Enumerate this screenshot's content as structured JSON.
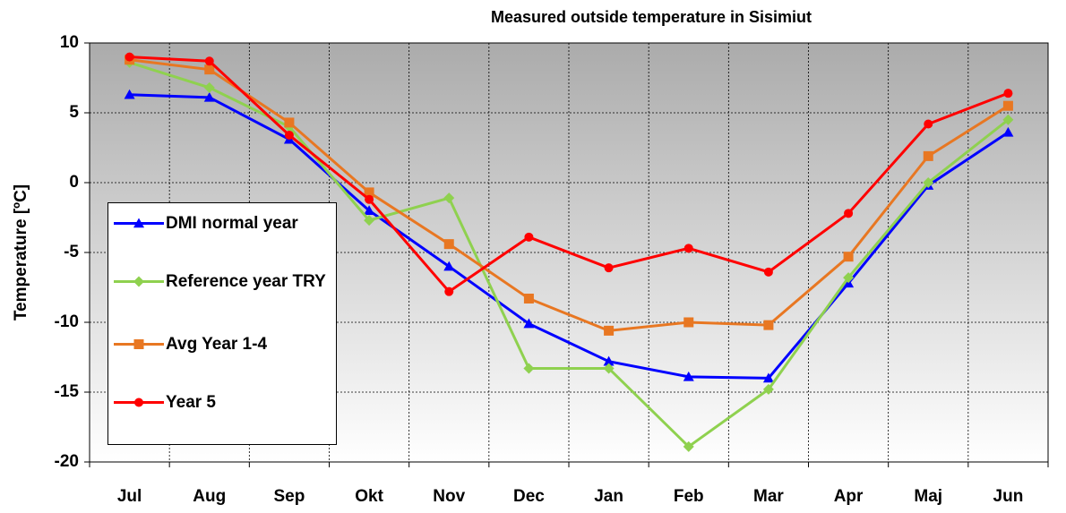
{
  "chart_data": {
    "type": "line",
    "title": "Measured outside temperature in Sisimiut",
    "ylabel": "Temperature [ºC]",
    "categories": [
      "Jul",
      "Aug",
      "Sep",
      "Okt",
      "Nov",
      "Dec",
      "Jan",
      "Feb",
      "Mar",
      "Apr",
      "Maj",
      "Jun"
    ],
    "series": [
      {
        "name": "DMI normal year",
        "color": "#0000ff",
        "marker": "triangle",
        "values": [
          6.3,
          6.1,
          3.1,
          -2.0,
          -6.0,
          -10.1,
          -12.8,
          -13.9,
          -14.0,
          -7.2,
          -0.2,
          3.6
        ]
      },
      {
        "name": "Reference year TRY",
        "color": "#8fd14f",
        "marker": "diamond",
        "values": [
          8.6,
          6.8,
          4.0,
          -2.7,
          -1.1,
          -13.3,
          -13.3,
          -18.9,
          -14.8,
          -6.8,
          0.0,
          4.5
        ]
      },
      {
        "name": "Avg Year 1-4",
        "color": "#e87722",
        "marker": "square",
        "values": [
          8.8,
          8.1,
          4.3,
          -0.7,
          -4.4,
          -8.3,
          -10.6,
          -10.0,
          -10.2,
          -5.3,
          1.9,
          5.5
        ]
      },
      {
        "name": "Year 5",
        "color": "#ff0000",
        "marker": "circle",
        "values": [
          9.0,
          8.7,
          3.4,
          -1.2,
          -7.8,
          -3.9,
          -6.1,
          -4.7,
          -6.4,
          -2.2,
          4.2,
          6.4
        ]
      }
    ],
    "ylim": [
      -20,
      10
    ],
    "yticks": [
      -20,
      -15,
      -10,
      -5,
      0,
      5,
      10
    ],
    "grid": true
  }
}
